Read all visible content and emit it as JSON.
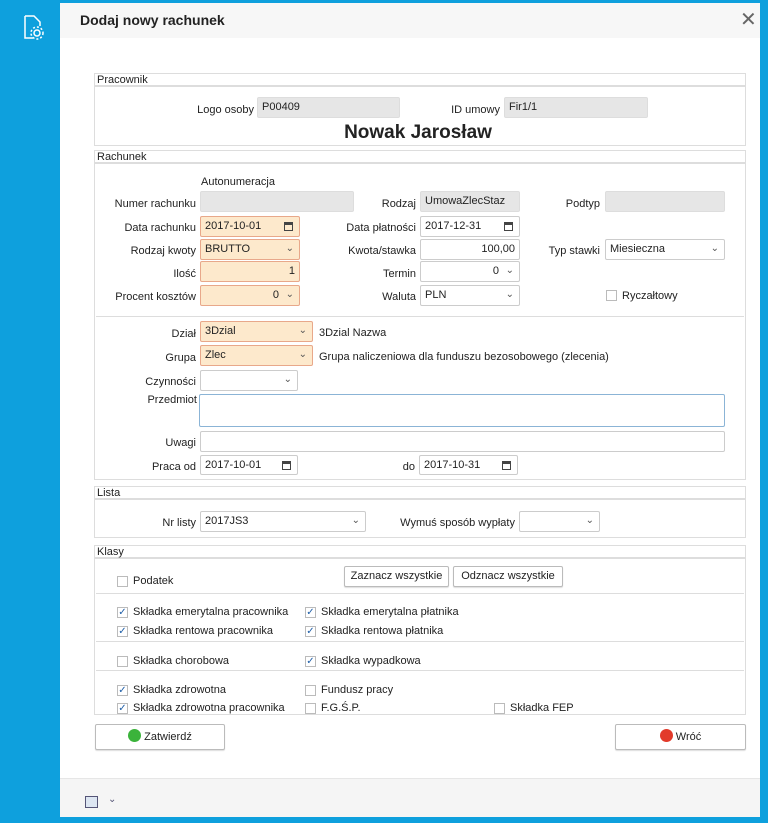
{
  "dialog": {
    "title": "Dodaj nowy rachunek",
    "close_icon": "close-icon"
  },
  "pracownik": {
    "header": "Pracownik",
    "logo_label": "Logo osoby",
    "logo_value": "P00409",
    "id_label": "ID umowy",
    "id_value": "Fir1/1",
    "name": "Nowak Jarosław"
  },
  "rachunek": {
    "header": "Rachunek",
    "autonumeracja": "Autonumeracja",
    "numer_label": "Numer rachunku",
    "numer_value": "",
    "rodzaj_label": "Rodzaj",
    "rodzaj_value": "UmowaZlecStaz",
    "podtyp_label": "Podtyp",
    "podtyp_value": "",
    "data_rachunku_label": "Data rachunku",
    "data_rachunku": "2017-10-01",
    "data_platnosci_label": "Data płatności",
    "data_platnosci": "2017-12-31",
    "rodzaj_kwoty_label": "Rodzaj kwoty",
    "rodzaj_kwoty": "BRUTTO",
    "kwota_label": "Kwota/stawka",
    "kwota": "100,00",
    "typ_stawki_label": "Typ stawki",
    "typ_stawki": "Miesieczna",
    "ilosc_label": "Ilość",
    "ilosc": "1",
    "termin_label": "Termin",
    "termin": "0",
    "procent_label": "Procent kosztów",
    "procent": "0",
    "waluta_label": "Waluta",
    "waluta": "PLN",
    "ryczaltowy_label": "Ryczałtowy",
    "ryczaltowy": false,
    "dzial_label": "Dział",
    "dzial": "3Dzial",
    "dzial_name": "3Dzial Nazwa",
    "grupa_label": "Grupa",
    "grupa": "Zlec",
    "grupa_name": "Grupa naliczeniowa dla funduszu bezosobowego (zlecenia)",
    "czynnosci_label": "Czynności",
    "czynnosci": "",
    "przedmiot_label": "Przedmiot",
    "przedmiot": "",
    "uwagi_label": "Uwagi",
    "uwagi": "",
    "praca_od_label": "Praca od",
    "praca_od": "2017-10-01",
    "do_label": "do",
    "praca_do": "2017-10-31"
  },
  "lista": {
    "header": "Lista",
    "nr_label": "Nr listy",
    "nr": "2017JS3",
    "wymus_label": "Wymuś sposób wypłaty",
    "wymus": ""
  },
  "klasy": {
    "header": "Klasy",
    "zaznacz": "Zaznacz wszystkie",
    "odznacz": "Odznacz wszystkie",
    "items": [
      {
        "label": "Podatek",
        "checked": false
      },
      {
        "label": "Składka emerytalna pracownika",
        "checked": true
      },
      {
        "label": "Składka emerytalna płatnika",
        "checked": true
      },
      {
        "label": "Składka rentowa pracownika",
        "checked": true
      },
      {
        "label": "Składka rentowa płatnika",
        "checked": true
      },
      {
        "label": "Składka chorobowa",
        "checked": false
      },
      {
        "label": "Składka wypadkowa",
        "checked": true
      },
      {
        "label": "Składka zdrowotna",
        "checked": true
      },
      {
        "label": "Fundusz pracy",
        "checked": false
      },
      {
        "label": "Składka zdrowotna pracownika",
        "checked": true
      },
      {
        "label": "F.G.Ś.P.",
        "checked": false
      },
      {
        "label": "Składka FEP",
        "checked": false
      }
    ]
  },
  "actions": {
    "confirm": "Zatwierdź",
    "back": "Wróć"
  },
  "colors": {
    "accent": "#0ea0dd",
    "required_bg": "#fde9cc"
  }
}
